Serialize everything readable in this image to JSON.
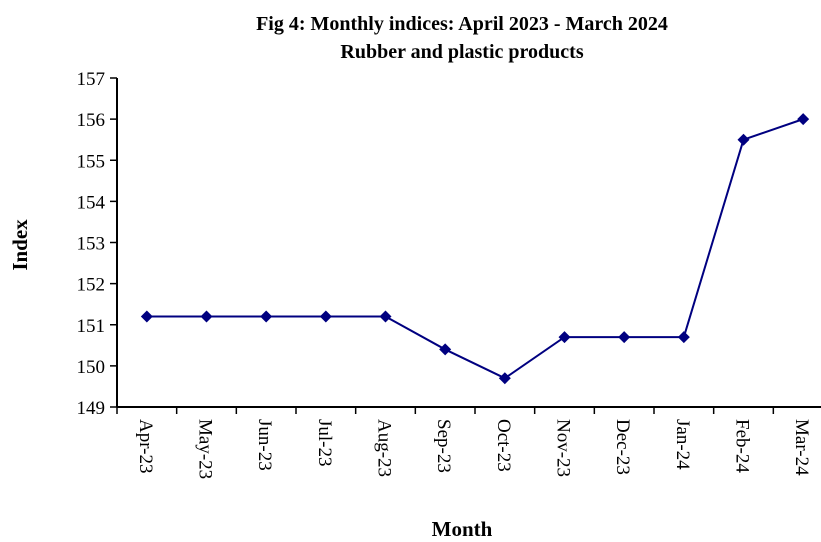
{
  "chart_data": {
    "type": "line",
    "title": "Fig 4: Monthly indices: April 2023 - March 2024",
    "subtitle": "Rubber and plastic products",
    "x_label": "Month",
    "y_label": "Index",
    "categories": [
      "Apr-23",
      "May-23",
      "Jun-23",
      "Jul-23",
      "Aug-23",
      "Sep-23",
      "Oct-23",
      "Nov-23",
      "Dec-23",
      "Jan-24",
      "Feb-24",
      "Mar-24"
    ],
    "series": [
      {
        "name": "Rubber and plastic products",
        "color": "#000080",
        "values": [
          151.2,
          151.2,
          151.2,
          151.2,
          151.2,
          150.4,
          149.7,
          150.7,
          150.7,
          150.7,
          155.5,
          156.0
        ]
      }
    ],
    "ylim": [
      149,
      157
    ],
    "yticks": [
      149,
      150,
      151,
      152,
      153,
      154,
      155,
      156,
      157
    ],
    "grid": false
  }
}
